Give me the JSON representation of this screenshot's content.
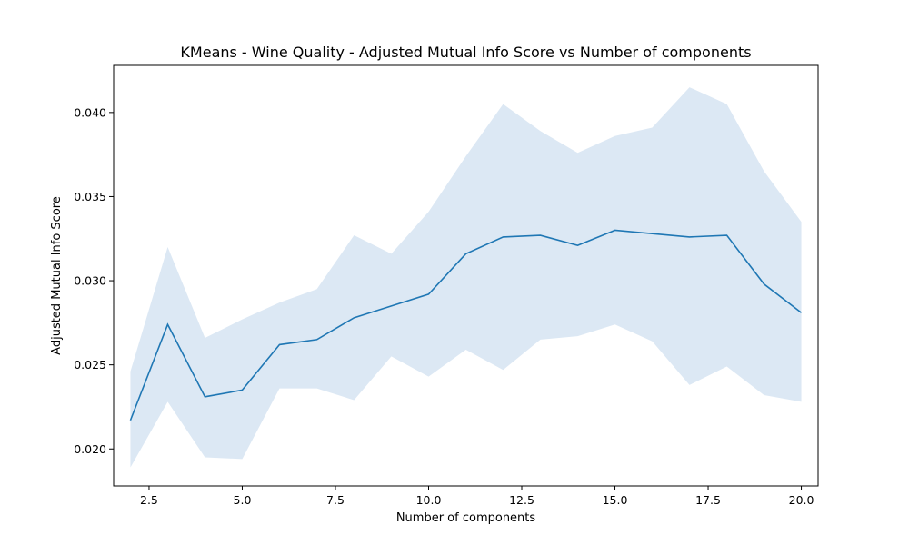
{
  "chart_data": {
    "type": "line",
    "title": "KMeans - Wine Quality - Adjusted Mutual Info Score vs Number of components",
    "xlabel": "Number of components",
    "ylabel": "Adjusted Mutual Info Score",
    "xlim": [
      1.55,
      20.45
    ],
    "ylim": [
      0.0178,
      0.0428
    ],
    "xticks": [
      2.5,
      5.0,
      7.5,
      10.0,
      12.5,
      15.0,
      17.5,
      20.0
    ],
    "xtick_labels": [
      "2.5",
      "5.0",
      "7.5",
      "10.0",
      "12.5",
      "15.0",
      "17.5",
      "20.0"
    ],
    "yticks": [
      0.02,
      0.025,
      0.03,
      0.035,
      0.04
    ],
    "ytick_labels": [
      "0.020",
      "0.025",
      "0.030",
      "0.035",
      "0.040"
    ],
    "grid": false,
    "x": [
      2,
      3,
      4,
      5,
      6,
      7,
      8,
      9,
      10,
      11,
      12,
      13,
      14,
      15,
      16,
      17,
      18,
      19,
      20
    ],
    "series": [
      {
        "values": [
          0.0217,
          0.0274,
          0.0231,
          0.0235,
          0.0262,
          0.0265,
          0.0278,
          0.0285,
          0.0292,
          0.0316,
          0.0326,
          0.0327,
          0.0321,
          0.033,
          0.0328,
          0.0326,
          0.0327,
          0.0298,
          0.0281
        ],
        "lower": [
          0.0189,
          0.0228,
          0.0195,
          0.0194,
          0.0236,
          0.0236,
          0.0229,
          0.0255,
          0.0243,
          0.0259,
          0.0247,
          0.0265,
          0.0267,
          0.0274,
          0.0264,
          0.0238,
          0.0249,
          0.0232,
          0.0228
        ],
        "upper": [
          0.0246,
          0.032,
          0.0266,
          0.0277,
          0.0287,
          0.0295,
          0.0327,
          0.0316,
          0.0341,
          0.0374,
          0.0405,
          0.0389,
          0.0376,
          0.0386,
          0.0391,
          0.0415,
          0.0405,
          0.0365,
          0.0335
        ],
        "color": "#1f77b4",
        "band_color": "#dce8f4"
      }
    ]
  }
}
